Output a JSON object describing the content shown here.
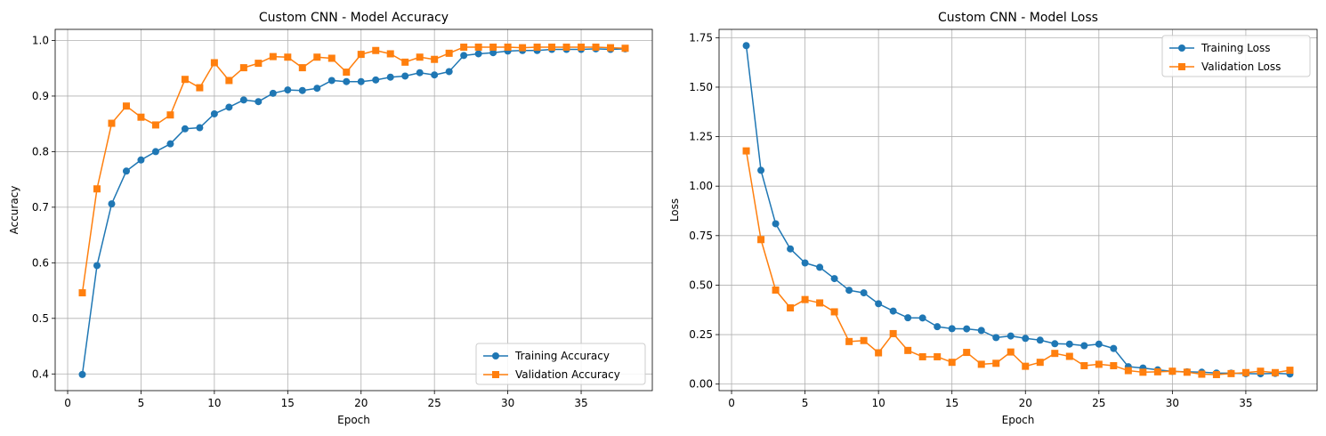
{
  "chart_data": [
    {
      "type": "line",
      "title": "Custom CNN - Model Accuracy",
      "xlabel": "Epoch",
      "ylabel": "Accuracy",
      "xlim": [
        -0.85,
        39.85
      ],
      "ylim": [
        0.37,
        1.02
      ],
      "xticks": [
        0,
        5,
        10,
        15,
        20,
        25,
        30,
        35
      ],
      "yticks": [
        0.4,
        0.5,
        0.6,
        0.7,
        0.8,
        0.9,
        1.0
      ],
      "grid": true,
      "legend_position": "lower-right",
      "x": [
        1,
        2,
        3,
        4,
        5,
        6,
        7,
        8,
        9,
        10,
        11,
        12,
        13,
        14,
        15,
        16,
        17,
        18,
        19,
        20,
        21,
        22,
        23,
        24,
        25,
        26,
        27,
        28,
        29,
        30,
        31,
        32,
        33,
        34,
        35,
        36,
        37,
        38
      ],
      "series": [
        {
          "name": "Training Accuracy",
          "color": "#1f77b4",
          "marker": "circle",
          "values": [
            0.399,
            0.595,
            0.706,
            0.765,
            0.785,
            0.8,
            0.814,
            0.841,
            0.843,
            0.868,
            0.88,
            0.893,
            0.89,
            0.905,
            0.911,
            0.91,
            0.914,
            0.928,
            0.926,
            0.926,
            0.929,
            0.934,
            0.936,
            0.942,
            0.938,
            0.944,
            0.973,
            0.976,
            0.978,
            0.981,
            0.982,
            0.982,
            0.984,
            0.984,
            0.984,
            0.985,
            0.984,
            0.985
          ]
        },
        {
          "name": "Validation Accuracy",
          "color": "#ff7f0e",
          "marker": "square",
          "values": [
            0.546,
            0.733,
            0.851,
            0.882,
            0.862,
            0.848,
            0.866,
            0.93,
            0.915,
            0.96,
            0.928,
            0.951,
            0.959,
            0.971,
            0.97,
            0.951,
            0.97,
            0.968,
            0.943,
            0.975,
            0.982,
            0.976,
            0.961,
            0.97,
            0.966,
            0.977,
            0.988,
            0.988,
            0.988,
            0.988,
            0.987,
            0.988,
            0.988,
            0.988,
            0.988,
            0.988,
            0.987,
            0.986
          ]
        }
      ]
    },
    {
      "type": "line",
      "title": "Custom CNN - Model Loss",
      "xlabel": "Epoch",
      "ylabel": "Loss",
      "xlim": [
        -0.85,
        39.85
      ],
      "ylim": [
        -0.033,
        1.792
      ],
      "xticks": [
        0,
        5,
        10,
        15,
        20,
        25,
        30,
        35
      ],
      "yticks": [
        0.0,
        0.25,
        0.5,
        0.75,
        1.0,
        1.25,
        1.5,
        1.75
      ],
      "ytick_labels": [
        "0.00",
        "0.25",
        "0.50",
        "0.75",
        "1.00",
        "1.25",
        "1.50",
        "1.75"
      ],
      "grid": true,
      "legend_position": "upper-right",
      "x": [
        1,
        2,
        3,
        4,
        5,
        6,
        7,
        8,
        9,
        10,
        11,
        12,
        13,
        14,
        15,
        16,
        17,
        18,
        19,
        20,
        21,
        22,
        23,
        24,
        25,
        26,
        27,
        28,
        29,
        30,
        31,
        32,
        33,
        34,
        35,
        36,
        37,
        38
      ],
      "series": [
        {
          "name": "Training Loss",
          "color": "#1f77b4",
          "marker": "circle",
          "values": [
            1.71,
            1.08,
            0.81,
            0.683,
            0.612,
            0.59,
            0.533,
            0.474,
            0.461,
            0.406,
            0.369,
            0.335,
            0.334,
            0.29,
            0.28,
            0.279,
            0.271,
            0.235,
            0.243,
            0.231,
            0.222,
            0.204,
            0.202,
            0.194,
            0.202,
            0.18,
            0.088,
            0.081,
            0.072,
            0.064,
            0.062,
            0.06,
            0.056,
            0.055,
            0.053,
            0.052,
            0.054,
            0.051
          ]
        },
        {
          "name": "Validation Loss",
          "color": "#ff7f0e",
          "marker": "square",
          "values": [
            1.178,
            0.73,
            0.475,
            0.385,
            0.427,
            0.41,
            0.365,
            0.215,
            0.22,
            0.158,
            0.255,
            0.17,
            0.138,
            0.138,
            0.11,
            0.16,
            0.1,
            0.105,
            0.162,
            0.09,
            0.11,
            0.155,
            0.14,
            0.093,
            0.1,
            0.093,
            0.068,
            0.06,
            0.062,
            0.065,
            0.06,
            0.05,
            0.048,
            0.053,
            0.058,
            0.065,
            0.058,
            0.07
          ]
        }
      ]
    }
  ]
}
